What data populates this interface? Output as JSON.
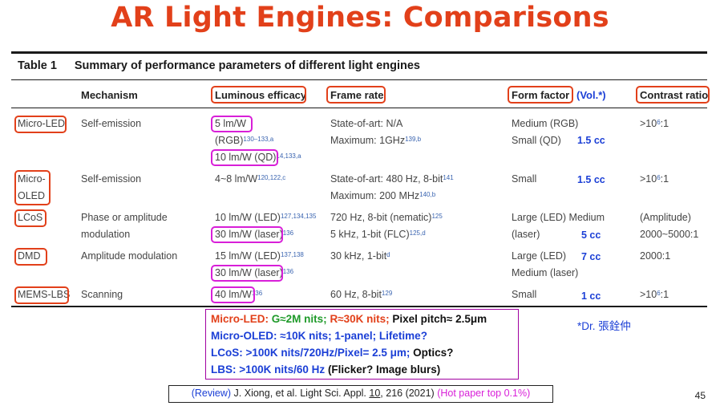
{
  "title": "AR Light Engines: Comparisons",
  "table": {
    "caption_num": "Table 1",
    "caption_text": "Summary of performance parameters of different light engines",
    "headers": {
      "mechanism": "Mechanism",
      "efficacy": "Luminous efficacy",
      "frame_rate": "Frame rate",
      "form_factor": "Form factor",
      "vol_note": "(Vol.*)",
      "contrast": "Contrast ratio"
    },
    "rows": {
      "micro_led": {
        "engine": "Micro-LED",
        "mechanism": "Self-emission",
        "eff1": "5 lm/W",
        "eff2": "(RGB)",
        "eff2_ref": "130–133,a",
        "eff3": "10 lm/W (QD)",
        "eff3_ref": "14,133,a",
        "fr1": "State-of-art: N/A",
        "fr2": "Maximum: 1GHz",
        "fr2_ref": "139,b",
        "ff1": "Medium (RGB)",
        "ff2": "Small (QD)",
        "vol": "1.5 cc",
        "contrast": ">10",
        "contrast_exp": "6",
        "contrast_tail": ":1"
      },
      "micro_oled": {
        "engine_l1": "Micro-",
        "engine_l2": "OLED",
        "mechanism": "Self-emission",
        "eff1": "4~8 lm/W",
        "eff1_ref": "120,122,c",
        "fr1": "State-of-art: 480 Hz, 8-bit",
        "fr1_ref": "141",
        "fr2": "Maximum: 200 MHz",
        "fr2_ref": "140,b",
        "ff1": "Small",
        "vol": "1.5 cc",
        "contrast": ">10",
        "contrast_exp": "6",
        "contrast_tail": ":1"
      },
      "lcos": {
        "engine": "LCoS",
        "mechanism1": "Phase or amplitude",
        "mechanism2": "modulation",
        "eff1": "10 lm/W (LED)",
        "eff1_ref": "127,134,135",
        "eff2": "30 lm/W (laser)",
        "eff2_ref": "136",
        "fr1": "720 Hz, 8-bit (nematic)",
        "fr1_ref": "125",
        "fr2": "5 kHz, 1-bit (FLC)",
        "fr2_ref": "125,d",
        "ff1": "Large (LED) Medium",
        "ff2": "(laser)",
        "vol": "5 cc",
        "contrast1": "(Amplitude)",
        "contrast2": "2000~5000:1"
      },
      "dmd": {
        "engine": "DMD",
        "mechanism": "Amplitude modulation",
        "eff1": "15 lm/W (LED)",
        "eff1_ref": "137,138",
        "eff2": "30 lm/W (laser)",
        "eff2_ref": "136",
        "fr1": "30 kHz, 1-bit",
        "fr1_ref": "d",
        "ff1": "Large (LED)",
        "ff2": "Medium (laser)",
        "vol": "7 cc",
        "contrast": "2000:1"
      },
      "mems_lbs": {
        "engine": "MEMS-LBS",
        "mechanism": "Scanning",
        "eff1": "40 lm/W",
        "eff1_ref": "136",
        "fr1": "60 Hz, 8-bit",
        "fr1_ref": "129",
        "ff1": "Small",
        "vol": "1 cc",
        "contrast": ">10",
        "contrast_exp": "6",
        "contrast_tail": ":1"
      }
    }
  },
  "summary": {
    "l1_label": "Micro-LED:",
    "l1_g": "G≈2M nits;",
    "l1_r": "R≈30K nits;",
    "l1_rest": "Pixel pitch≈ 2.5μm",
    "l2_blue": "Micro-OLED: ≈10K nits; 1-panel; Lifetime?",
    "l3_blue": "LCoS: >100K nits/720Hz/Pixel= 2.5 μm;",
    "l3_black": "Optics?",
    "l4_blue": "LBS: >100K nits/60 Hz",
    "l4_black": "(Flicker? Image blurs)"
  },
  "dr_name": "*Dr. 張銓仲",
  "reference": {
    "review": "(Review)",
    "text_a": "J. Xiong, et al. Light Sci. Appl.",
    "volume": "10",
    "text_b": ", 216 (2021)",
    "hot": "(Hot paper top 0.1%)"
  },
  "page_number": "45",
  "colors": {
    "title": "#e2401a",
    "box_orange": "#e2401a",
    "box_magenta": "#d81fd8",
    "blue": "#1b3fd6",
    "green": "#1f9a2a"
  }
}
